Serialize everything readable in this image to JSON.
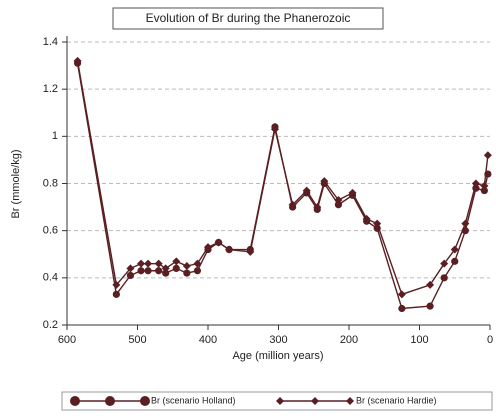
{
  "chart_data": {
    "type": "line",
    "title": "Evolution of Br during the Phanerozoic",
    "x_label": "Age (million years)",
    "y_label": "Br (mmole/kg)",
    "x": [
      585,
      530,
      510,
      495,
      485,
      470,
      460,
      445,
      430,
      415,
      400,
      385,
      370,
      340,
      305,
      280,
      260,
      245,
      235,
      215,
      195,
      175,
      160,
      125,
      85,
      65,
      50,
      35,
      20,
      8,
      3
    ],
    "series": [
      {
        "name": "Br (scenario Holland)",
        "color": "#5a1f22",
        "marker": "circle",
        "values": [
          1.31,
          0.33,
          0.41,
          0.43,
          0.43,
          0.43,
          0.42,
          0.44,
          0.42,
          0.43,
          0.52,
          0.55,
          0.52,
          0.52,
          1.04,
          0.7,
          0.76,
          0.69,
          0.8,
          0.71,
          0.75,
          0.64,
          0.61,
          0.27,
          0.28,
          0.4,
          0.47,
          0.6,
          0.78,
          0.77,
          0.84
        ]
      },
      {
        "name": "Br (scenario Hardie)",
        "color": "#5a1f22",
        "marker": "diamond",
        "values": [
          1.32,
          0.37,
          0.44,
          0.46,
          0.46,
          0.46,
          0.44,
          0.47,
          0.45,
          0.46,
          0.53,
          0.55,
          0.52,
          0.51,
          1.03,
          0.71,
          0.77,
          0.7,
          0.81,
          0.73,
          0.76,
          0.65,
          0.63,
          0.33,
          0.37,
          0.46,
          0.52,
          0.63,
          0.8,
          0.79,
          0.92
        ]
      }
    ],
    "xlim": [
      600,
      0
    ],
    "xticks": [
      600,
      500,
      400,
      300,
      200,
      100,
      0
    ],
    "ylim": [
      0.2,
      1.4
    ],
    "yticks": [
      0.2,
      0.4,
      0.6,
      0.8,
      1,
      1.2,
      1.4
    ],
    "grid": true,
    "legend": "bottom"
  }
}
